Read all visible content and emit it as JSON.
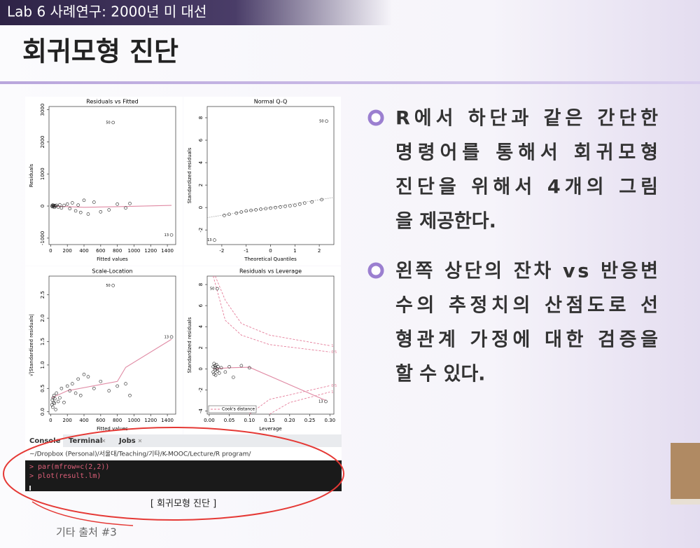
{
  "header": "Lab 6 사례연구: 2000년 미 대선",
  "title": "회귀모형 진단",
  "figure": {
    "panels": [
      {
        "type": "scatter",
        "title": "Residuals vs Fitted",
        "xlabel": "Fitted values",
        "ylabel": "Residuals",
        "xlim": [
          -20,
          1500
        ],
        "ylim": [
          -1200,
          3100
        ],
        "xticks": [
          0,
          200,
          400,
          600,
          800,
          1000,
          1200,
          1400
        ],
        "yticks": [
          -1000,
          0,
          1000,
          2000,
          3000
        ],
        "x": [
          15,
          20,
          25,
          30,
          35,
          40,
          45,
          50,
          60,
          70,
          90,
          110,
          130,
          160,
          200,
          230,
          260,
          300,
          330,
          360,
          400,
          450,
          520,
          600,
          700,
          800,
          900,
          950,
          750,
          1450
        ],
        "y": [
          10,
          -20,
          30,
          -10,
          20,
          0,
          -40,
          15,
          -5,
          25,
          -30,
          40,
          -60,
          20,
          60,
          -80,
          100,
          -150,
          30,
          -200,
          180,
          -250,
          120,
          -180,
          -120,
          60,
          -60,
          80,
          2600,
          -900
        ],
        "labels": [
          null,
          null,
          null,
          null,
          null,
          null,
          null,
          null,
          null,
          null,
          null,
          null,
          null,
          null,
          null,
          null,
          null,
          null,
          null,
          null,
          null,
          null,
          null,
          null,
          null,
          null,
          null,
          null,
          "50",
          "13"
        ],
        "smooth": {
          "x": [
            15,
            400,
            800,
            1450
          ],
          "y": [
            0,
            -40,
            -20,
            20
          ]
        }
      },
      {
        "type": "scatter",
        "title": "Normal Q-Q",
        "xlabel": "Theoretical Quantiles",
        "ylabel": "Standardized residuals",
        "xlim": [
          -2.6,
          2.6
        ],
        "ylim": [
          -3.3,
          9
        ],
        "xticks": [
          -2,
          -1,
          0,
          1,
          2
        ],
        "yticks": [
          -2,
          0,
          2,
          4,
          6,
          8
        ],
        "x": [
          -2.3,
          -1.9,
          -1.7,
          -1.4,
          -1.2,
          -1,
          -0.8,
          -0.6,
          -0.4,
          -0.2,
          0,
          0.2,
          0.4,
          0.6,
          0.8,
          1,
          1.2,
          1.4,
          1.7,
          2.1,
          2.3
        ],
        "y": [
          -2.9,
          -0.7,
          -0.6,
          -0.5,
          -0.4,
          -0.3,
          -0.25,
          -0.2,
          -0.15,
          -0.1,
          -0.05,
          0,
          0.05,
          0.1,
          0.15,
          0.2,
          0.3,
          0.4,
          0.5,
          0.7,
          7.7
        ],
        "labels": [
          "13",
          null,
          null,
          null,
          null,
          null,
          null,
          null,
          null,
          null,
          null,
          null,
          null,
          null,
          null,
          null,
          null,
          null,
          null,
          null,
          "50"
        ],
        "ref_line": {
          "x": [
            -2.6,
            2.6
          ],
          "y": [
            -0.9,
            0.9
          ]
        }
      },
      {
        "type": "scatter",
        "title": "Scale-Location",
        "xlabel": "Fitted values",
        "ylabel": "√|Standardized residuals|",
        "xlim": [
          -20,
          1500
        ],
        "ylim": [
          -0.05,
          2.9
        ],
        "xticks": [
          0,
          200,
          400,
          600,
          800,
          1000,
          1200,
          1400
        ],
        "yticks": [
          {
            "value": 0,
            "label": "0.0"
          },
          {
            "value": 0.5,
            "label": "0.5"
          },
          {
            "value": 1,
            "label": "1.0"
          },
          {
            "value": 1.5,
            "label": "1.5"
          },
          {
            "value": 2,
            "label": "2.0"
          },
          {
            "value": 2.5,
            "label": "2.5"
          }
        ],
        "x": [
          15,
          20,
          25,
          30,
          35,
          40,
          45,
          50,
          60,
          70,
          90,
          110,
          130,
          160,
          200,
          230,
          260,
          300,
          330,
          360,
          400,
          450,
          520,
          600,
          700,
          800,
          900,
          950,
          750,
          1450
        ],
        "y": [
          0.15,
          0.25,
          0.1,
          0.3,
          0.2,
          0.35,
          0.18,
          0.28,
          0.05,
          0.4,
          0.22,
          0.3,
          0.5,
          0.2,
          0.55,
          0.45,
          0.6,
          0.4,
          0.7,
          0.35,
          0.8,
          0.75,
          0.5,
          0.65,
          0.45,
          0.55,
          0.6,
          0.35,
          2.7,
          1.6
        ],
        "labels": [
          null,
          null,
          null,
          null,
          null,
          null,
          null,
          null,
          null,
          null,
          null,
          null,
          null,
          null,
          null,
          null,
          null,
          null,
          null,
          null,
          null,
          null,
          null,
          null,
          null,
          null,
          null,
          null,
          "50",
          "13"
        ],
        "smooth": {
          "x": [
            15,
            200,
            500,
            800,
            900,
            1450
          ],
          "y": [
            0.3,
            0.45,
            0.55,
            0.65,
            0.95,
            1.55
          ]
        }
      },
      {
        "type": "scatter",
        "title": "Residuals vs Leverage",
        "xlabel": "Leverage",
        "ylabel": "Standardized residuals",
        "xlim": [
          -0.005,
          0.31
        ],
        "ylim": [
          -4.3,
          8.8
        ],
        "xticks": [
          {
            "value": 0,
            "label": "0.00"
          },
          {
            "value": 0.05,
            "label": "0.05"
          },
          {
            "value": 0.1,
            "label": "0.10"
          },
          {
            "value": 0.15,
            "label": "0.15"
          },
          {
            "value": 0.2,
            "label": "0.20"
          },
          {
            "value": 0.25,
            "label": "0.25"
          },
          {
            "value": 0.3,
            "label": "0.30"
          }
        ],
        "yticks": [
          -4,
          -2,
          0,
          2,
          4,
          6,
          8
        ],
        "x": [
          0.01,
          0.01,
          0.012,
          0.012,
          0.014,
          0.015,
          0.015,
          0.016,
          0.018,
          0.02,
          0.02,
          0.022,
          0.025,
          0.03,
          0.04,
          0.05,
          0.06,
          0.08,
          0.1,
          0.02,
          0.29
        ],
        "y": [
          0.2,
          -0.3,
          0.5,
          -0.5,
          0.1,
          -0.1,
          0.3,
          -0.6,
          0.4,
          0,
          -0.2,
          0.2,
          -0.4,
          0.1,
          -0.3,
          0.2,
          -0.8,
          0.3,
          0.1,
          7.6,
          -3.1
        ],
        "labels": [
          null,
          null,
          null,
          null,
          null,
          null,
          null,
          null,
          null,
          null,
          null,
          null,
          null,
          null,
          null,
          null,
          null,
          null,
          null,
          "50",
          "13"
        ],
        "smooth": {
          "x": [
            0.01,
            0.05,
            0.1,
            0.29
          ],
          "y": [
            0,
            0.1,
            0.15,
            -3
          ]
        },
        "contours": [
          {
            "label": "1",
            "x": [
              0.015,
              0.04,
              0.08,
              0.15,
              0.3
            ],
            "y": [
              8.8,
              6.5,
              4.3,
              3.2,
              2.2
            ]
          },
          {
            "label": "0.5",
            "x": [
              0.01,
              0.04,
              0.08,
              0.15,
              0.3
            ],
            "y": [
              8.8,
              4.6,
              3.2,
              2.3,
              1.6
            ]
          },
          {
            "label": "0.5",
            "x": [
              0.1,
              0.15,
              0.3
            ],
            "y": [
              -4.3,
              -2.9,
              -1.6
            ]
          },
          {
            "label": "1",
            "x": [
              0.15,
              0.2,
              0.3
            ],
            "y": [
              -4.3,
              -3.2,
              -2.2
            ]
          }
        ],
        "legend": "Cook's distance"
      }
    ],
    "console": {
      "tabs": [
        "Console",
        "Terminal",
        "Jobs"
      ],
      "path": "~/Dropbox (Personal)/서울대/Teaching/기타/K-MOOC/Lecture/R program/",
      "lines": [
        "> par(mfrow=c(2,2))",
        "> plot(result.lm)"
      ]
    },
    "caption": "[ 회귀모형 진단 ]"
  },
  "bullets": [
    [
      "R에서 하단과 같은 간단한",
      "명령어를 통해서 회귀모형",
      "진단을 위해서 4개의 그림",
      "을 제공한다."
    ],
    [
      "왼쪽 상단의 잔차 vs 반응변",
      "수의 추정치의 산점도로 선",
      "형관계 가정에 대한 검증을",
      "할 수 있다."
    ]
  ],
  "source": "기타 출처 #3"
}
